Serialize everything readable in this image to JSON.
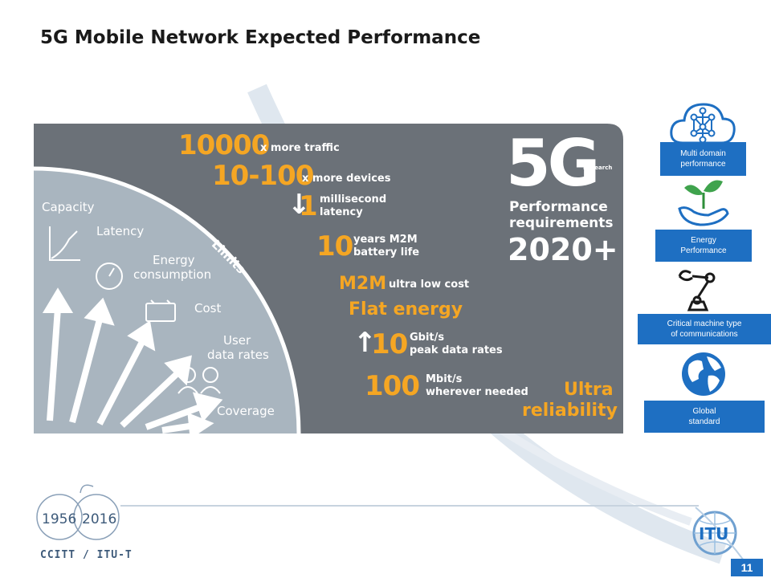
{
  "slide": {
    "title": "5G Mobile Network Expected  Performance",
    "page_number": "11"
  },
  "infographic": {
    "traffic": {
      "number": "10000",
      "text": "x more traffic"
    },
    "devices": {
      "number": "10-100",
      "text": "x more devices"
    },
    "latency": {
      "number": "1",
      "line1": "millisecond",
      "line2": "latency"
    },
    "battery": {
      "number": "10",
      "line1": "years M2M",
      "line2": "battery life"
    },
    "m2m": {
      "label": "M2M",
      "text": "ultra low cost"
    },
    "flat_energy": "Flat energy",
    "peak": {
      "number": "10",
      "line1": "Gbit/s",
      "line2": "peak data rates"
    },
    "wherever": {
      "number": "100",
      "line1": "Mbit/s",
      "line2": "wherever needed"
    },
    "reliability": {
      "line1": "Ultra",
      "line2": "reliability"
    },
    "headline": {
      "big": "5G",
      "badge": "Research",
      "line1": "Performance",
      "line2": "requirements",
      "year": "2020+"
    },
    "limits": "Limits",
    "categories": {
      "capacity": "Capacity",
      "latency": "Latency",
      "energy_line1": "Energy",
      "energy_line2": "consumption",
      "cost": "Cost",
      "user_line1": "User",
      "user_line2": "data rates",
      "coverage": "Coverage"
    }
  },
  "side_panels": {
    "multi_domain": {
      "line1": "Multi domain",
      "line2": "performance",
      "icon": "cloud-network-icon"
    },
    "energy": {
      "line1": "Energy",
      "line2": "Performance",
      "icon": "plant-in-hand-icon"
    },
    "critical": {
      "line1": "Critical machine type",
      "line2": "of communications",
      "icon": "robot-arm-icon"
    },
    "global": {
      "line1": "Global",
      "line2": "standard",
      "icon": "globe-icon"
    }
  },
  "footer": {
    "anniversary": {
      "start": "1956",
      "end": "2016",
      "caption": "CCITT / ITU-T"
    },
    "itu_logo": "ITU"
  },
  "colors": {
    "accent_orange": "#f5a623",
    "panel_grey": "#6b7178",
    "arc_grey": "#a9b5bf",
    "brand_blue": "#1e6fc2"
  }
}
